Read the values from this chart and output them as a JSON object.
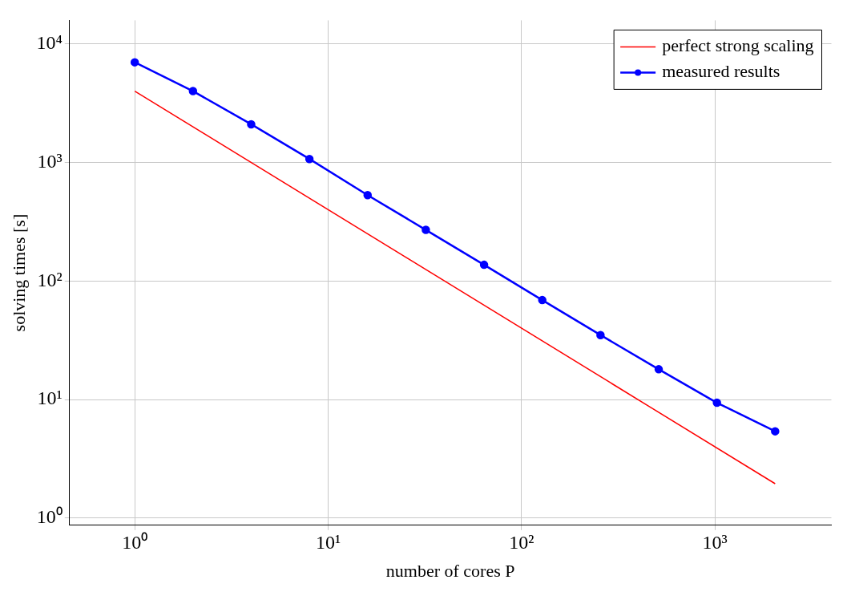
{
  "chart_data": {
    "type": "line",
    "xlabel": "number of cores P",
    "ylabel": "solving times [s]",
    "log": "xy",
    "grid": true,
    "legend": "top right",
    "xlim": [
      0.46,
      4000
    ],
    "ylim": [
      0.87,
      15800
    ],
    "xticks": [
      {
        "value": 1,
        "label": "10⁰"
      },
      {
        "value": 10,
        "label": "10¹"
      },
      {
        "value": 100,
        "label": "10²"
      },
      {
        "value": 1000,
        "label": "10³"
      }
    ],
    "yticks": [
      {
        "value": 1,
        "label": "10⁰"
      },
      {
        "value": 10,
        "label": "10¹"
      },
      {
        "value": 100,
        "label": "10²"
      },
      {
        "value": 1000,
        "label": "10³"
      },
      {
        "value": 10000,
        "label": "10⁴"
      }
    ],
    "series": [
      {
        "name": "perfect strong scaling",
        "color": "#ff0000",
        "marker": "none",
        "x": [
          1,
          2048
        ],
        "values": [
          4000,
          1.95
        ]
      },
      {
        "name": "measured results",
        "color": "#0000ff",
        "marker": "circle",
        "x": [
          1,
          2,
          4,
          8,
          16,
          32,
          64,
          128,
          256,
          512,
          1024,
          2048
        ],
        "values": [
          7000,
          4000,
          2100,
          1070,
          530,
          270,
          137,
          69,
          35,
          18,
          9.4,
          5.4
        ]
      }
    ]
  }
}
